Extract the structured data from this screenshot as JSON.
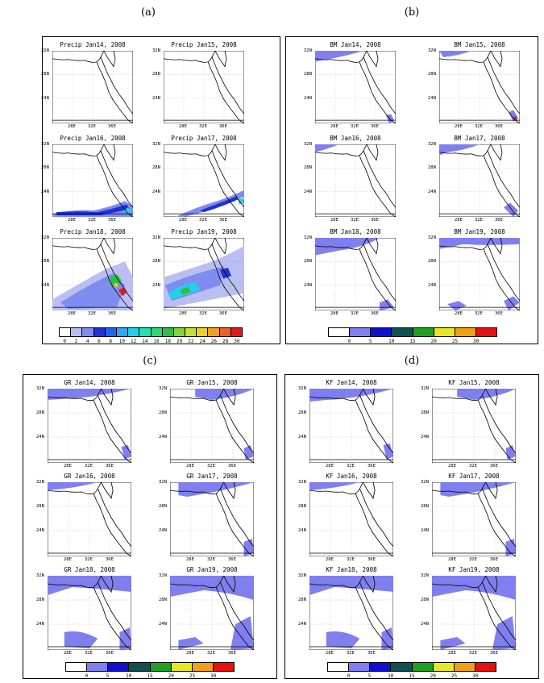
{
  "panel_labels": [
    "(a)",
    "(b)",
    "(c)",
    "(d)"
  ],
  "panels": [
    {
      "id": "a",
      "titles": [
        "Precip Jan14, 2008",
        "Precip Jan15, 2008",
        "Precip Jan16, 2008",
        "Precip Jan17, 2008",
        "Precip Jan18, 2008",
        "Precip Jan19, 2008"
      ],
      "lat_labels": [
        "32N",
        "28N",
        "24N"
      ],
      "lon_labels": [
        "28E",
        "32E",
        "36E"
      ],
      "colorbar_ticks": [
        "0",
        "2",
        "4",
        "6",
        "8",
        "10",
        "12",
        "14",
        "16",
        "18",
        "20",
        "22",
        "24",
        "26",
        "28",
        "30"
      ],
      "colorbar_colors": [
        "#ffffff",
        "#b9bff2",
        "#7f8cf0",
        "#2031d8",
        "#1e64f0",
        "#2ea8f0",
        "#22d0e8",
        "#23e0b0",
        "#2cd870",
        "#2ac046",
        "#7fd43a",
        "#c8e030",
        "#f0d020",
        "#f0a020",
        "#f06020",
        "#e81818"
      ]
    },
    {
      "id": "b",
      "titles": [
        "BM Jan14, 2008",
        "BM Jan15, 2008",
        "BM Jan16, 2008",
        "BM Jan17, 2008",
        "BM Jan18, 2008",
        "BM Jan19, 2008"
      ],
      "lat_labels": [
        "32N",
        "28N",
        "24N"
      ],
      "lon_labels": [
        "28E",
        "32E",
        "36E"
      ],
      "colorbar_ticks": [
        "0",
        "5",
        "10",
        "15",
        "20",
        "25",
        "30"
      ],
      "colorbar_colors": [
        "#ffffff",
        "#7f7ff0",
        "#1010d0",
        "#105050",
        "#20a020",
        "#e8e820",
        "#f0a010",
        "#e81010"
      ]
    },
    {
      "id": "c",
      "titles": [
        "GR Jan14, 2008",
        "GR Jan15, 2008",
        "GR Jan16, 2008",
        "GR Jan17, 2008",
        "GR Jan18, 2008",
        "GR Jan19, 2008"
      ],
      "lat_labels": [
        "32N",
        "28N",
        "24N"
      ],
      "lon_labels": [
        "28E",
        "32E",
        "36E"
      ],
      "colorbar_ticks": [
        "0",
        "5",
        "10",
        "15",
        "20",
        "25",
        "30"
      ],
      "colorbar_colors": [
        "#ffffff",
        "#7f7ff0",
        "#1010d0",
        "#105050",
        "#20a020",
        "#e8e820",
        "#f0a010",
        "#e81010"
      ]
    },
    {
      "id": "d",
      "titles": [
        "KF Jan14, 2008",
        "KF Jan15, 2008",
        "KF Jan16, 2008",
        "KF Jan17, 2008",
        "KF Jan18, 2008",
        "KF Jan19, 2008"
      ],
      "lat_labels": [
        "32N",
        "28N",
        "24N"
      ],
      "lon_labels": [
        "28E",
        "32E",
        "36E"
      ],
      "colorbar_ticks": [
        "0",
        "5",
        "10",
        "15",
        "20",
        "25",
        "30"
      ],
      "colorbar_colors": [
        "#ffffff",
        "#7f7ff0",
        "#1010d0",
        "#105050",
        "#20a020",
        "#e8e820",
        "#f0a010",
        "#e81010"
      ]
    }
  ]
}
